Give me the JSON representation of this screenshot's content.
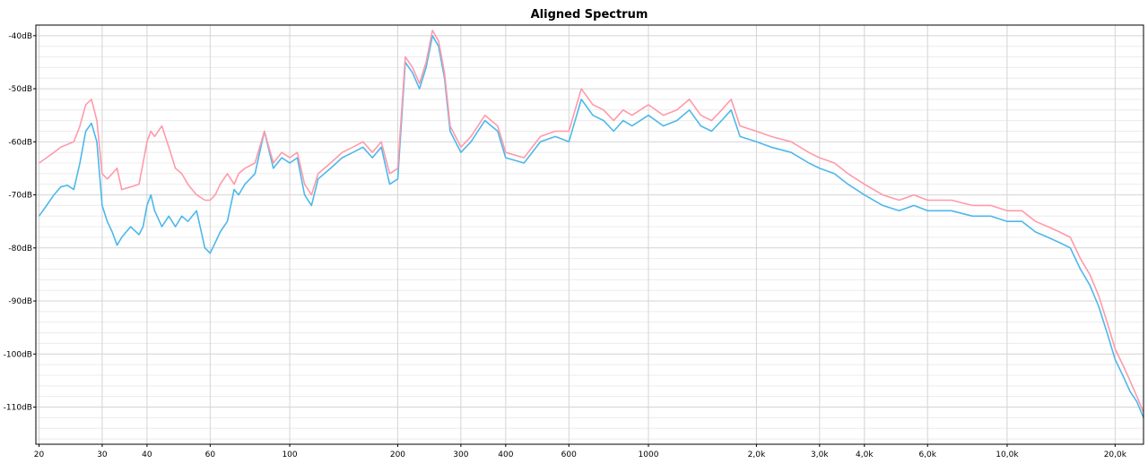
{
  "chart_data": {
    "type": "line",
    "title": "Aligned Spectrum",
    "xlabel": "",
    "ylabel": "",
    "x_scale": "log",
    "xlim": [
      19.6,
      24000
    ],
    "ylim": [
      -117,
      -38
    ],
    "grid": true,
    "x_ticks": [
      {
        "value": 20,
        "label": "20"
      },
      {
        "value": 30,
        "label": "30"
      },
      {
        "value": 40,
        "label": "40"
      },
      {
        "value": 60,
        "label": "60"
      },
      {
        "value": 100,
        "label": "100"
      },
      {
        "value": 200,
        "label": "200"
      },
      {
        "value": 300,
        "label": "300"
      },
      {
        "value": 400,
        "label": "400"
      },
      {
        "value": 600,
        "label": "600"
      },
      {
        "value": 1000,
        "label": "1000"
      },
      {
        "value": 2000,
        "label": "2,0k"
      },
      {
        "value": 3000,
        "label": "3,0k"
      },
      {
        "value": 4000,
        "label": "4,0k"
      },
      {
        "value": 6000,
        "label": "6,0k"
      },
      {
        "value": 10000,
        "label": "10,0k"
      },
      {
        "value": 20000,
        "label": "20,0k"
      }
    ],
    "y_ticks": [
      {
        "value": -40,
        "label": "-40dB"
      },
      {
        "value": -50,
        "label": "-50dB"
      },
      {
        "value": -60,
        "label": "-60dB"
      },
      {
        "value": -70,
        "label": "-70dB"
      },
      {
        "value": -80,
        "label": "-80dB"
      },
      {
        "value": -90,
        "label": "-90dB"
      },
      {
        "value": -100,
        "label": "-100dB"
      },
      {
        "value": -110,
        "label": "-110dB"
      }
    ],
    "series": [
      {
        "color": "#4db8ea",
        "x": [
          20,
          21,
          22,
          23,
          24,
          25,
          26,
          27,
          28,
          29,
          30,
          31,
          32,
          33,
          34,
          36,
          38,
          39,
          40,
          41,
          42,
          44,
          46,
          48,
          50,
          52,
          55,
          58,
          60,
          62,
          64,
          67,
          70,
          72,
          75,
          80,
          85,
          90,
          95,
          100,
          105,
          110,
          115,
          120,
          130,
          140,
          150,
          160,
          170,
          180,
          190,
          200,
          210,
          220,
          230,
          240,
          250,
          260,
          270,
          280,
          300,
          320,
          350,
          380,
          400,
          450,
          500,
          550,
          600,
          650,
          700,
          750,
          800,
          850,
          900,
          1000,
          1100,
          1200,
          1300,
          1400,
          1500,
          1600,
          1700,
          1800,
          2000,
          2200,
          2500,
          2800,
          3000,
          3300,
          3600,
          4000,
          4500,
          5000,
          5500,
          6000,
          7000,
          8000,
          9000,
          10000,
          11000,
          12000,
          13000,
          14000,
          15000,
          16000,
          17000,
          18000,
          19000,
          20000,
          21000,
          22000,
          23000,
          24000
        ],
        "y": [
          -74,
          -72,
          -70,
          -68.5,
          -68.2,
          -69,
          -64,
          -58,
          -56.5,
          -60,
          -72,
          -75,
          -77,
          -79.5,
          -78,
          -76,
          -77.5,
          -76,
          -72,
          -70,
          -73,
          -76,
          -74,
          -76,
          -74,
          -75,
          -73,
          -80,
          -81,
          -79,
          -77,
          -75,
          -69,
          -70,
          -68,
          -66,
          -58,
          -65,
          -63,
          -64,
          -63,
          -70,
          -72,
          -67,
          -65,
          -63,
          -62,
          -61,
          -63,
          -61,
          -68,
          -67,
          -45,
          -47,
          -50,
          -46,
          -40,
          -42,
          -48,
          -58,
          -62,
          -60,
          -56,
          -58,
          -63,
          -64,
          -60,
          -59,
          -60,
          -52,
          -55,
          -56,
          -58,
          -56,
          -57,
          -55,
          -57,
          -56,
          -54,
          -57,
          -58,
          -56,
          -54,
          -59,
          -60,
          -61,
          -62,
          -64,
          -65,
          -66,
          -68,
          -70,
          -72,
          -73,
          -72,
          -73,
          -73,
          -74,
          -74,
          -75,
          -75,
          -77,
          -78,
          -79,
          -80,
          -84,
          -87,
          -91,
          -96,
          -101,
          -104,
          -107,
          -109,
          -112
        ]
      },
      {
        "color": "#ff9aaa",
        "x": [
          20,
          21,
          22,
          23,
          24,
          25,
          26,
          27,
          28,
          29,
          30,
          31,
          32,
          33,
          34,
          36,
          38,
          39,
          40,
          41,
          42,
          44,
          46,
          48,
          50,
          52,
          55,
          58,
          60,
          62,
          64,
          67,
          70,
          72,
          75,
          80,
          85,
          90,
          95,
          100,
          105,
          110,
          115,
          120,
          130,
          140,
          150,
          160,
          170,
          180,
          190,
          200,
          210,
          220,
          230,
          240,
          250,
          260,
          270,
          280,
          300,
          320,
          350,
          380,
          400,
          450,
          500,
          550,
          600,
          650,
          700,
          750,
          800,
          850,
          900,
          1000,
          1100,
          1200,
          1300,
          1400,
          1500,
          1600,
          1700,
          1800,
          2000,
          2200,
          2500,
          2800,
          3000,
          3300,
          3600,
          4000,
          4500,
          5000,
          5500,
          6000,
          7000,
          8000,
          9000,
          10000,
          11000,
          12000,
          13000,
          14000,
          15000,
          16000,
          17000,
          18000,
          19000,
          20000,
          21000,
          22000,
          23000,
          24000
        ],
        "y": [
          -64,
          -63,
          -62,
          -61,
          -60.5,
          -60,
          -57,
          -53,
          -52,
          -56,
          -66,
          -67,
          -66,
          -65,
          -69,
          -68.5,
          -68,
          -64,
          -60,
          -58,
          -59,
          -57,
          -61,
          -65,
          -66,
          -68,
          -70,
          -71,
          -71,
          -70,
          -68,
          -66,
          -68,
          -66,
          -65,
          -64,
          -58,
          -64,
          -62,
          -63,
          -62,
          -68,
          -70,
          -66,
          -64,
          -62,
          -61,
          -60,
          -62,
          -60,
          -66,
          -65,
          -44,
          -46,
          -49,
          -45,
          -39,
          -41,
          -47,
          -57,
          -61,
          -59,
          -55,
          -57,
          -62,
          -63,
          -59,
          -58,
          -58,
          -50,
          -53,
          -54,
          -56,
          -54,
          -55,
          -53,
          -55,
          -54,
          -52,
          -55,
          -56,
          -54,
          -52,
          -57,
          -58,
          -59,
          -60,
          -62,
          -63,
          -64,
          -66,
          -68,
          -70,
          -71,
          -70,
          -71,
          -71,
          -72,
          -72,
          -73,
          -73,
          -75,
          -76,
          -77,
          -78,
          -82,
          -85,
          -89,
          -94,
          -99,
          -102,
          -105,
          -108,
          -111
        ]
      }
    ]
  }
}
